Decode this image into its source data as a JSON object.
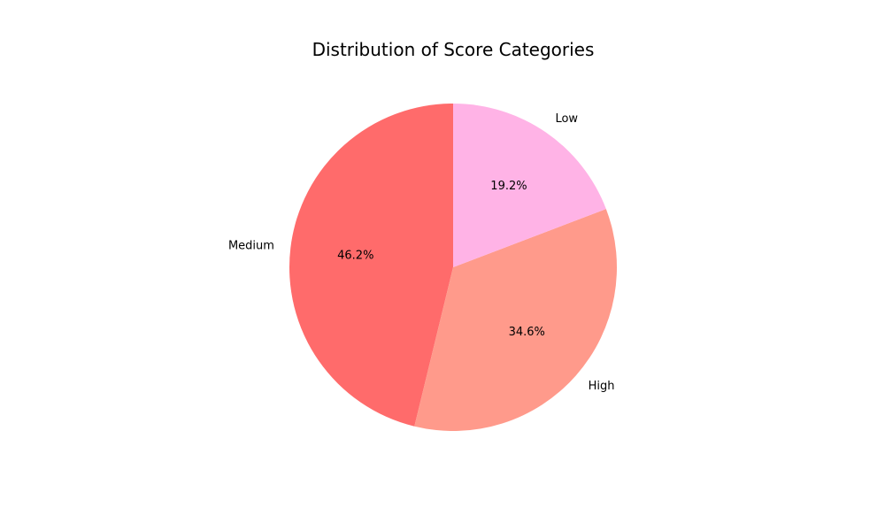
{
  "chart_data": {
    "type": "pie",
    "title": "Distribution of Score Categories",
    "start_angle_deg": 90,
    "direction": "counterclockwise",
    "slices": [
      {
        "label": "Medium",
        "value": 46.2,
        "pct_label": "46.2%",
        "color": "#ff6b6b"
      },
      {
        "label": "High",
        "value": 34.6,
        "pct_label": "34.6%",
        "color": "#ff9a8b"
      },
      {
        "label": "Low",
        "value": 19.2,
        "pct_label": "19.2%",
        "color": "#ffb3e6"
      }
    ]
  }
}
